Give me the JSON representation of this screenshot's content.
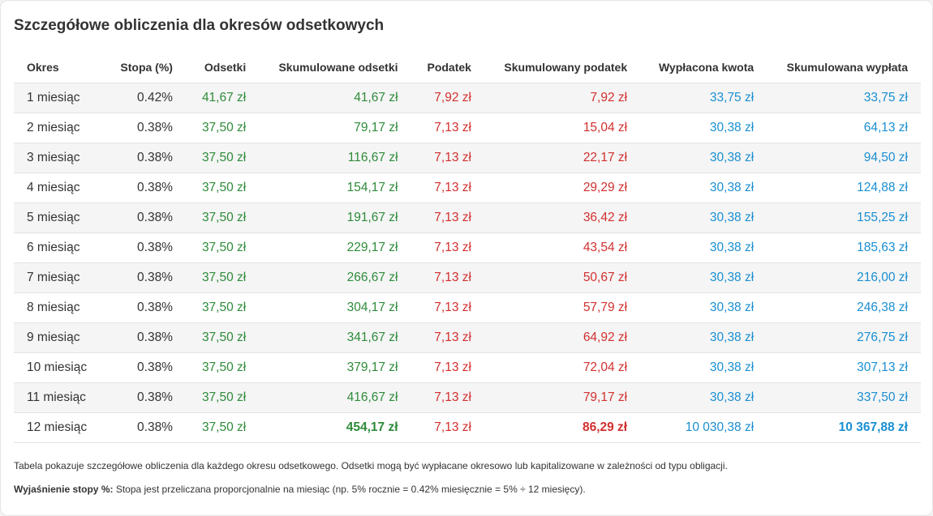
{
  "title": "Szczegółowe obliczenia dla okresów odsetkowych",
  "colors": {
    "interest": "#2e8b3a",
    "tax": "#d32f2f",
    "payout": "#1a8fd1",
    "row_alt_bg": "#f5f5f5"
  },
  "table": {
    "headers": [
      "Okres",
      "Stopa (%)",
      "Odsetki",
      "Skumulowane odsetki",
      "Podatek",
      "Skumulowany podatek",
      "Wypłacona kwota",
      "Skumulowana wypłata"
    ],
    "rows": [
      [
        "1 miesiąc",
        "0.42%",
        "41,67 zł",
        "41,67 zł",
        "7,92 zł",
        "7,92 zł",
        "33,75 zł",
        "33,75 zł"
      ],
      [
        "2 miesiąc",
        "0.38%",
        "37,50 zł",
        "79,17 zł",
        "7,13 zł",
        "15,04 zł",
        "30,38 zł",
        "64,13 zł"
      ],
      [
        "3 miesiąc",
        "0.38%",
        "37,50 zł",
        "116,67 zł",
        "7,13 zł",
        "22,17 zł",
        "30,38 zł",
        "94,50 zł"
      ],
      [
        "4 miesiąc",
        "0.38%",
        "37,50 zł",
        "154,17 zł",
        "7,13 zł",
        "29,29 zł",
        "30,38 zł",
        "124,88 zł"
      ],
      [
        "5 miesiąc",
        "0.38%",
        "37,50 zł",
        "191,67 zł",
        "7,13 zł",
        "36,42 zł",
        "30,38 zł",
        "155,25 zł"
      ],
      [
        "6 miesiąc",
        "0.38%",
        "37,50 zł",
        "229,17 zł",
        "7,13 zł",
        "43,54 zł",
        "30,38 zł",
        "185,63 zł"
      ],
      [
        "7 miesiąc",
        "0.38%",
        "37,50 zł",
        "266,67 zł",
        "7,13 zł",
        "50,67 zł",
        "30,38 zł",
        "216,00 zł"
      ],
      [
        "8 miesiąc",
        "0.38%",
        "37,50 zł",
        "304,17 zł",
        "7,13 zł",
        "57,79 zł",
        "30,38 zł",
        "246,38 zł"
      ],
      [
        "9 miesiąc",
        "0.38%",
        "37,50 zł",
        "341,67 zł",
        "7,13 zł",
        "64,92 zł",
        "30,38 zł",
        "276,75 zł"
      ],
      [
        "10 miesiąc",
        "0.38%",
        "37,50 zł",
        "379,17 zł",
        "7,13 zł",
        "72,04 zł",
        "30,38 zł",
        "307,13 zł"
      ],
      [
        "11 miesiąc",
        "0.38%",
        "37,50 zł",
        "416,67 zł",
        "7,13 zł",
        "79,17 zł",
        "30,38 zł",
        "337,50 zł"
      ],
      [
        "12 miesiąc",
        "0.38%",
        "37,50 zł",
        "454,17 zł",
        "7,13 zł",
        "86,29 zł",
        "10 030,38 zł",
        "10 367,88 zł"
      ]
    ]
  },
  "notes": {
    "description": "Tabela pokazuje szczegółowe obliczenia dla każdego okresu odsetkowego. Odsetki mogą być wypłacane okresowo lub kapitalizowane w zależności od typu obligacji.",
    "rate_label": "Wyjaśnienie stopy %:",
    "rate_text": " Stopa jest przeliczana proporcjonalnie na miesiąc (np. 5% rocznie = 0.42% miesięcznie = 5% ÷ 12 miesięcy)."
  }
}
